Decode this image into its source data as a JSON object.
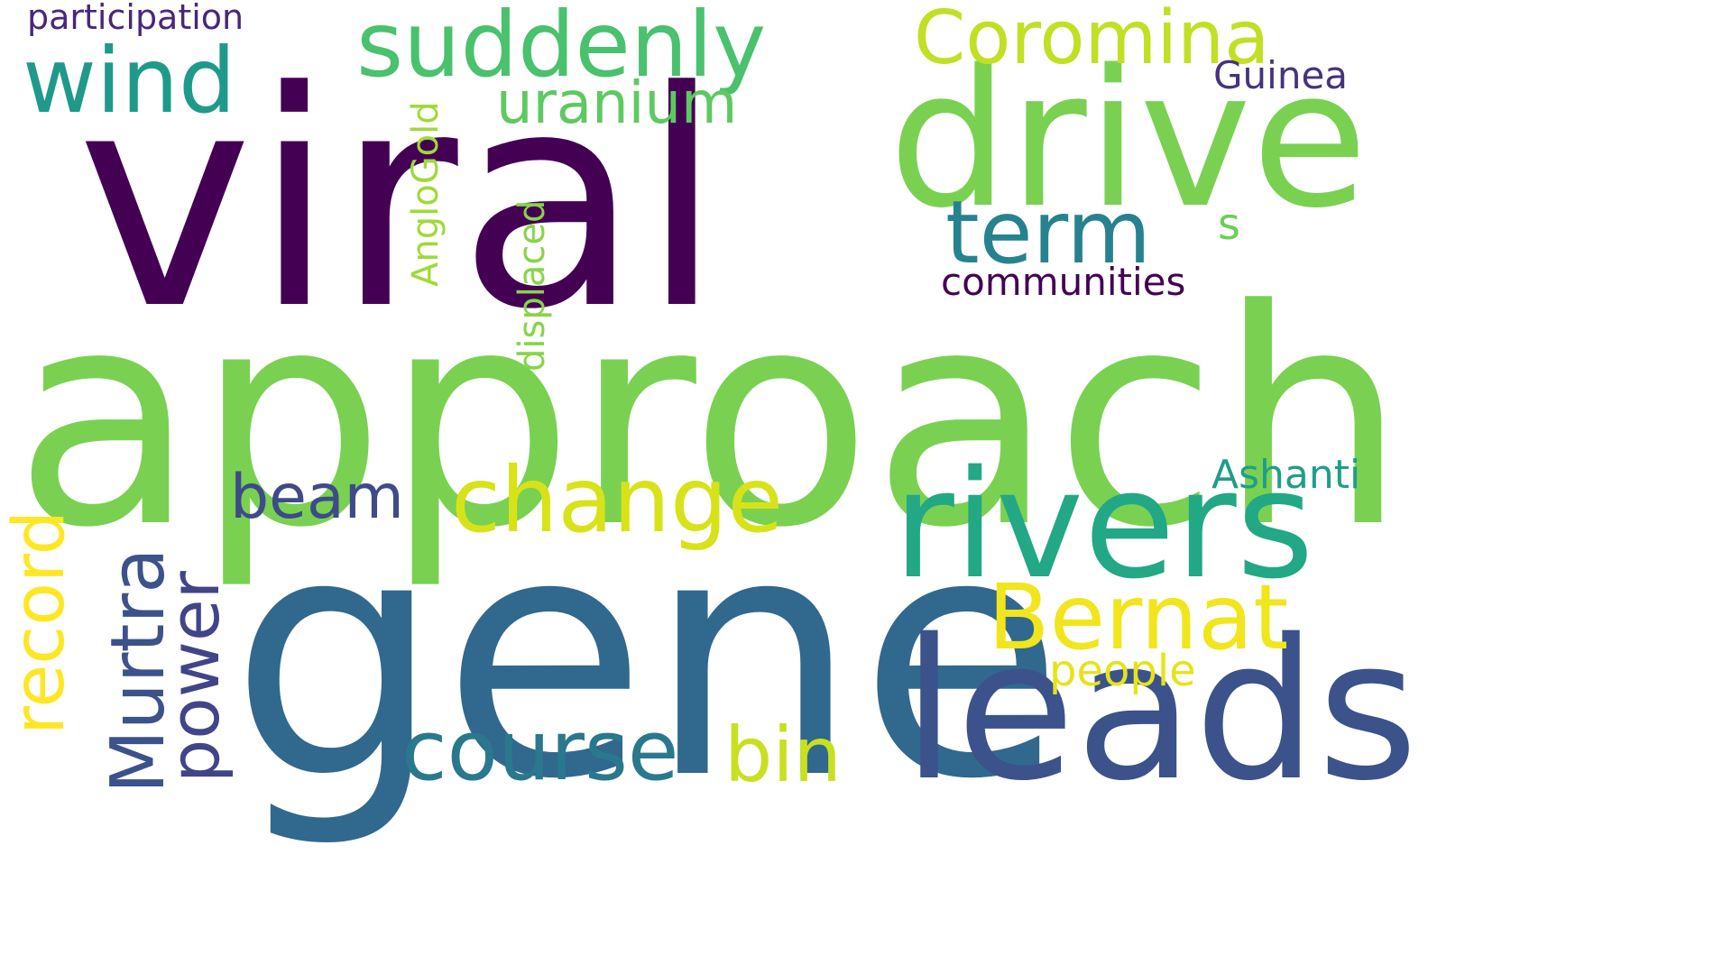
{
  "words": [
    {
      "id": "viral",
      "text": "viral",
      "color": "#440154",
      "orientation": "horizontal"
    },
    {
      "id": "approach",
      "text": "approach",
      "color": "#7AD151",
      "orientation": "horizontal"
    },
    {
      "id": "gene",
      "text": "gene",
      "color": "#31688E",
      "orientation": "horizontal"
    },
    {
      "id": "drive",
      "text": "drive",
      "color": "#7AD151",
      "orientation": "horizontal"
    },
    {
      "id": "leads",
      "text": "leads",
      "color": "#3B528B",
      "orientation": "horizontal"
    },
    {
      "id": "rivers",
      "text": "rivers",
      "color": "#22A884",
      "orientation": "horizontal"
    },
    {
      "id": "suddenly",
      "text": "suddenly",
      "color": "#4AC16D",
      "orientation": "horizontal"
    },
    {
      "id": "coromina",
      "text": "Coromina",
      "color": "#C2DF23",
      "orientation": "horizontal"
    },
    {
      "id": "wind",
      "text": "wind",
      "color": "#1F9A8A",
      "orientation": "horizontal"
    },
    {
      "id": "term",
      "text": "term",
      "color": "#26828E",
      "orientation": "horizontal"
    },
    {
      "id": "uranium",
      "text": "uranium",
      "color": "#5EC962",
      "orientation": "horizontal"
    },
    {
      "id": "guinea",
      "text": "Guinea",
      "color": "#46337E",
      "orientation": "horizontal"
    },
    {
      "id": "participation",
      "text": "participation",
      "color": "#482878",
      "orientation": "horizontal"
    },
    {
      "id": "communities",
      "text": "communities",
      "color": "#440154",
      "orientation": "horizontal"
    },
    {
      "id": "s",
      "text": "s",
      "color": "#6CCE59",
      "orientation": "horizontal"
    },
    {
      "id": "anglogold",
      "text": "AngloGold",
      "color": "#9FDA3A",
      "orientation": "vertical"
    },
    {
      "id": "displaced",
      "text": "displaced",
      "color": "#86D549",
      "orientation": "vertical"
    },
    {
      "id": "change",
      "text": "change",
      "color": "#D8E219",
      "orientation": "horizontal"
    },
    {
      "id": "beam",
      "text": "beam",
      "color": "#3E4A89",
      "orientation": "horizontal"
    },
    {
      "id": "bernat",
      "text": "Bernat",
      "color": "#F1E51D",
      "orientation": "horizontal"
    },
    {
      "id": "ashanti",
      "text": "Ashanti",
      "color": "#1F9E89",
      "orientation": "horizontal"
    },
    {
      "id": "people",
      "text": "people",
      "color": "#E5E419",
      "orientation": "horizontal"
    },
    {
      "id": "record",
      "text": "record",
      "color": "#FDE725",
      "orientation": "vertical"
    },
    {
      "id": "murtra",
      "text": "Murtra",
      "color": "#3B528B",
      "orientation": "vertical"
    },
    {
      "id": "power",
      "text": "power",
      "color": "#414487",
      "orientation": "vertical"
    },
    {
      "id": "course",
      "text": "course",
      "color": "#2A788E",
      "orientation": "horizontal"
    },
    {
      "id": "bin",
      "text": "bin",
      "color": "#C8E020",
      "orientation": "horizontal"
    }
  ]
}
